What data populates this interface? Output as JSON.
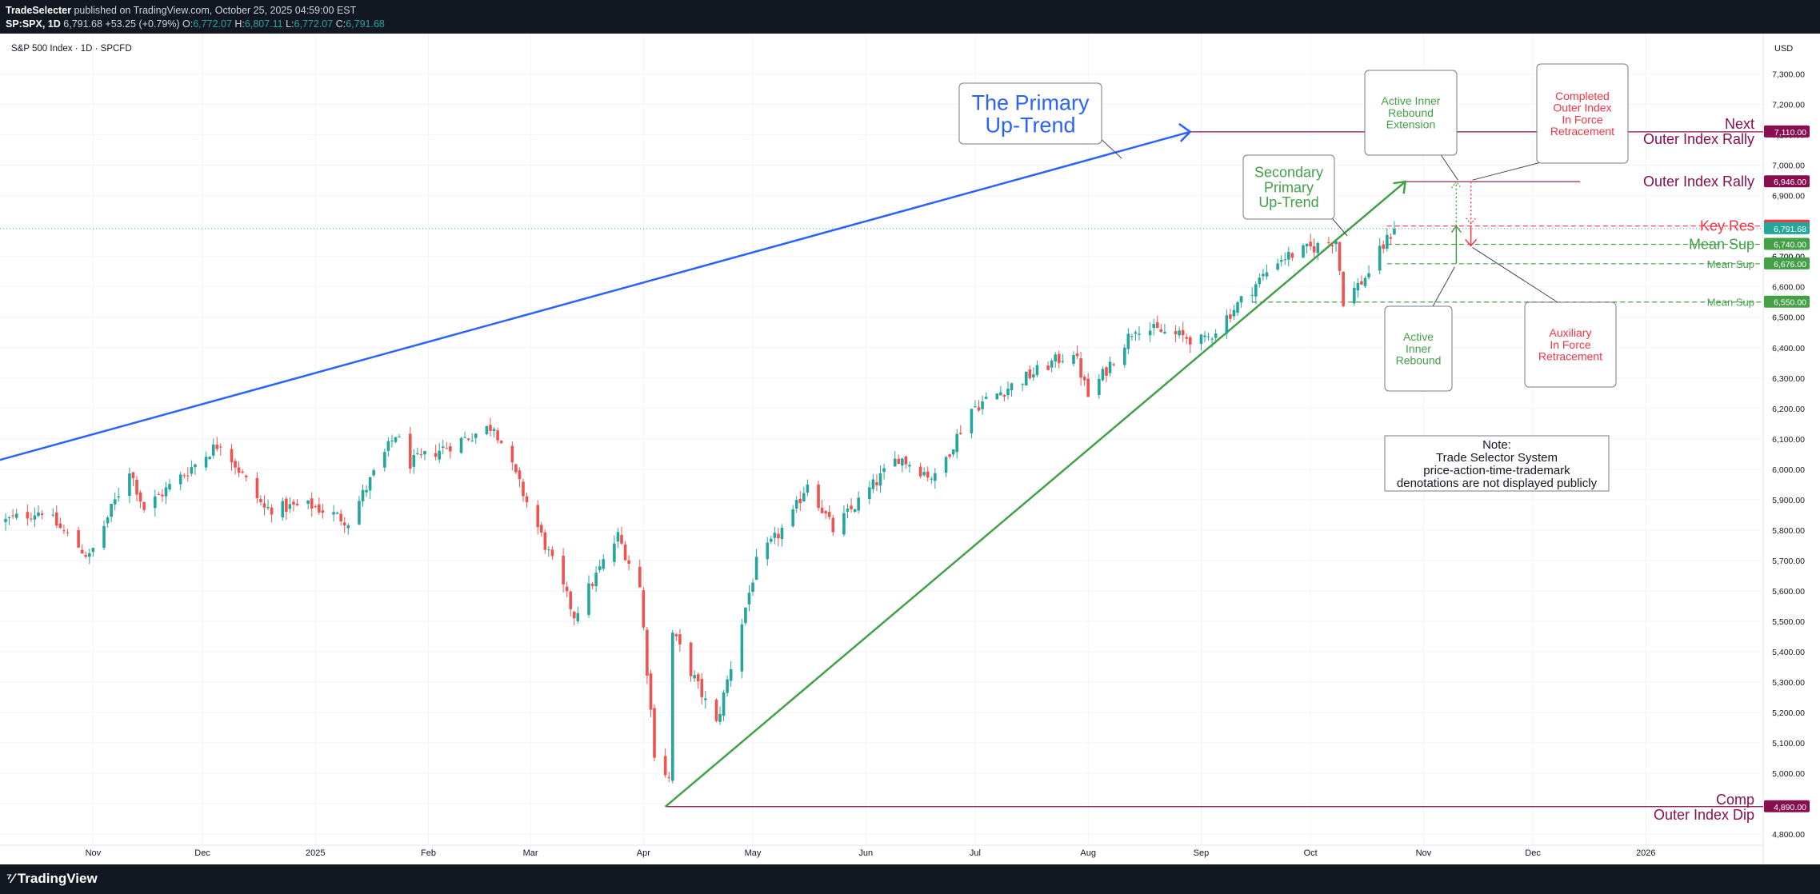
{
  "header": {
    "publisher": "TradeSelecter",
    "published_line": " published on TradingView.com, October 25, 2025 04:59:00 EST",
    "symbol": "SP:SPX, 1D",
    "last": "6,791.68",
    "change": "+53.25 (+0.79%)",
    "o_label": "O:",
    "o_value": "6,772.07",
    "h_label": "H:",
    "h_value": "6,807.11",
    "l_label": "L:",
    "l_value": "6,772.07",
    "c_label": "C:",
    "c_value": "6,791.68"
  },
  "legend": {
    "title": "S&P 500 Index · 1D · SPCFD"
  },
  "currency": "USD",
  "footer": {
    "brand": "TradingView"
  },
  "colors": {
    "up": "#26a69a",
    "down": "#ef5350",
    "blue": "#2962ff",
    "green": "#43a047",
    "maroon": "#880e4f",
    "red": "#f23645",
    "grid": "#f0f3fa"
  },
  "annotations": {
    "primary_line1": "The Primary",
    "primary_line2": "Up-Trend",
    "secondary_line1": "Secondary",
    "secondary_line2": "Primary",
    "secondary_line3": "Up-Trend",
    "air_ext_1": "Active Inner",
    "air_ext_2": "Rebound",
    "air_ext_3": "Extension",
    "coir_1": "Completed",
    "coir_2": "Outer Index",
    "coir_3": "In Force",
    "coir_4": "Retracement",
    "air_1": "Active",
    "air_2": "Inner",
    "air_3": "Rebound",
    "aux_1": "Auxiliary",
    "aux_2": "In Force",
    "aux_3": "Retracement",
    "note_1": "Note:",
    "note_2": "Trade Selector System",
    "note_3": "price-action-time-trademark",
    "note_4": "denotations are not displayed publicly"
  },
  "levels": [
    {
      "value": 7110,
      "label1": "Next",
      "label2": "Outer Index Rally",
      "tag": "7,110.00",
      "color": "#880e4f"
    },
    {
      "value": 6946,
      "label1": "Outer Index Rally",
      "tag": "6,946.00",
      "color": "#880e4f"
    },
    {
      "value": 6800,
      "label1": "Key Res",
      "tag": "6,800.00",
      "color": "#f23645"
    },
    {
      "value": 6740,
      "label1": "Mean Sup",
      "tag": "6,740.00",
      "color": "#43a047"
    },
    {
      "value": 6676,
      "label1": "Mean Sup",
      "tag": "6,676.00",
      "color": "#43a047"
    },
    {
      "value": 6550,
      "label1": "Mean Sup",
      "tag": "6,550.00",
      "color": "#43a047"
    },
    {
      "value": 4890,
      "label1": "Comp",
      "label2": "Outer Index Dip",
      "tag": "4,890.00",
      "color": "#880e4f"
    }
  ],
  "last_price_tag": "6,791.68",
  "hidden_tick": "6,700.00",
  "chart_data": {
    "type": "candlestick",
    "title": "S&P 500 Index · 1D · SPCFD",
    "ylim": [
      4750,
      7420
    ],
    "y_ticks": [
      4800,
      4900,
      5000,
      5100,
      5200,
      5300,
      5400,
      5500,
      5600,
      5700,
      5800,
      5900,
      6000,
      6100,
      6200,
      6300,
      6400,
      6500,
      6600,
      6700,
      6800,
      6900,
      7000,
      7100,
      7200,
      7300
    ],
    "y_tick_labels": [
      "4,800.00",
      "4,900.00",
      "5,000.00",
      "5,100.00",
      "5,200.00",
      "5,300.00",
      "5,400.00",
      "5,500.00",
      "5,600.00",
      "5,700.00",
      "5,800.00",
      "5,900.00",
      "6,000.00",
      "6,100.00",
      "6,200.00",
      "6,300.00",
      "6,400.00",
      "6,500.00",
      "6,600.00",
      "6,700.00",
      "6,800.00",
      "6,900.00",
      "7,000.00",
      "7,100.00",
      "7,200.00",
      "7,300.00"
    ],
    "x_range": [
      "2024-10-08",
      "2026-01-31"
    ],
    "x_labels": [
      {
        "date": "2024-11-01",
        "label": "Nov"
      },
      {
        "date": "2024-12-01",
        "label": "Dec"
      },
      {
        "date": "2025-01-01",
        "label": "2025"
      },
      {
        "date": "2025-02-01",
        "label": "Feb"
      },
      {
        "date": "2025-03-01",
        "label": "Mar"
      },
      {
        "date": "2025-04-01",
        "label": "Apr"
      },
      {
        "date": "2025-05-01",
        "label": "May"
      },
      {
        "date": "2025-06-01",
        "label": "Jun"
      },
      {
        "date": "2025-07-01",
        "label": "Jul"
      },
      {
        "date": "2025-08-01",
        "label": "Aug"
      },
      {
        "date": "2025-09-01",
        "label": "Sep"
      },
      {
        "date": "2025-10-01",
        "label": "Oct"
      },
      {
        "date": "2025-11-01",
        "label": "Nov"
      },
      {
        "date": "2025-12-01",
        "label": "Dec"
      },
      {
        "date": "2026-01-01",
        "label": "2026"
      }
    ],
    "closes_anchors": [
      [
        "2024-10-08",
        5830
      ],
      [
        "2024-10-18",
        5865
      ],
      [
        "2024-10-31",
        5710
      ],
      [
        "2024-11-11",
        6000
      ],
      [
        "2024-11-15",
        5870
      ],
      [
        "2024-12-06",
        6090
      ],
      [
        "2024-12-18",
        5870
      ],
      [
        "2024-12-31",
        5880
      ],
      [
        "2025-01-10",
        5830
      ],
      [
        "2025-01-23",
        6115
      ],
      [
        "2025-01-27",
        6020
      ],
      [
        "2025-02-19",
        6145
      ],
      [
        "2025-03-04",
        5780
      ],
      [
        "2025-03-13",
        5520
      ],
      [
        "2025-03-25",
        5780
      ],
      [
        "2025-03-31",
        5610
      ],
      [
        "2025-04-04",
        5070
      ],
      [
        "2025-04-08",
        4980
      ],
      [
        "2025-04-09",
        5460
      ],
      [
        "2025-04-21",
        5160
      ],
      [
        "2025-05-02",
        5690
      ],
      [
        "2025-05-12",
        5850
      ],
      [
        "2025-05-16",
        5960
      ],
      [
        "2025-05-23",
        5800
      ],
      [
        "2025-06-10",
        6040
      ],
      [
        "2025-06-20",
        5970
      ],
      [
        "2025-06-30",
        6200
      ],
      [
        "2025-07-28",
        6390
      ],
      [
        "2025-08-01",
        6240
      ],
      [
        "2025-08-14",
        6470
      ],
      [
        "2025-09-02",
        6420
      ],
      [
        "2025-09-22",
        6690
      ],
      [
        "2025-10-08",
        6755
      ],
      [
        "2025-10-10",
        6555
      ],
      [
        "2025-10-16",
        6630
      ],
      [
        "2025-10-21",
        6735
      ],
      [
        "2025-10-24",
        6791.68
      ]
    ],
    "last_candle": {
      "date": "2025-10-24",
      "open": 6772.07,
      "high": 6807.11,
      "low": 6772.07,
      "close": 6791.68
    },
    "trendlines": [
      {
        "name": "The Primary Up-Trend",
        "from": [
          "2024-10-08",
          6030
        ],
        "to": [
          "2025-08-29",
          7110
        ]
      },
      {
        "name": "Secondary Primary Up-Trend",
        "from": [
          "2025-04-07",
          4890
        ],
        "to": [
          "2025-10-27",
          6946
        ]
      }
    ]
  }
}
